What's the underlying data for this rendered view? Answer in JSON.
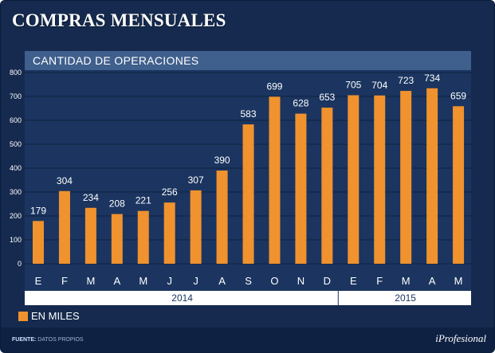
{
  "title": "COMPRAS MENSUALES",
  "chart_data": {
    "type": "bar",
    "title": "CANTIDAD DE OPERACIONES",
    "categories": [
      "E",
      "F",
      "M",
      "A",
      "M",
      "J",
      "J",
      "A",
      "S",
      "O",
      "N",
      "D",
      "E",
      "F",
      "M",
      "A",
      "M"
    ],
    "values": [
      179,
      304,
      234,
      208,
      221,
      256,
      307,
      390,
      583,
      699,
      628,
      653,
      705,
      704,
      723,
      734,
      659
    ],
    "ylim": [
      0,
      800
    ],
    "yticks": [
      "0",
      "100",
      "200",
      "300",
      "400",
      "500",
      "600",
      "700",
      "800"
    ],
    "year_groups": [
      {
        "label": "2014",
        "count": 12
      },
      {
        "label": "2015",
        "count": 5
      }
    ],
    "legend": "EN MILES",
    "grid": true,
    "bar_color": "#f0922e"
  },
  "footer": {
    "source_label": "FUENTE:",
    "source_text": "DATOS PROPIOS",
    "brand": "iProfesional"
  }
}
